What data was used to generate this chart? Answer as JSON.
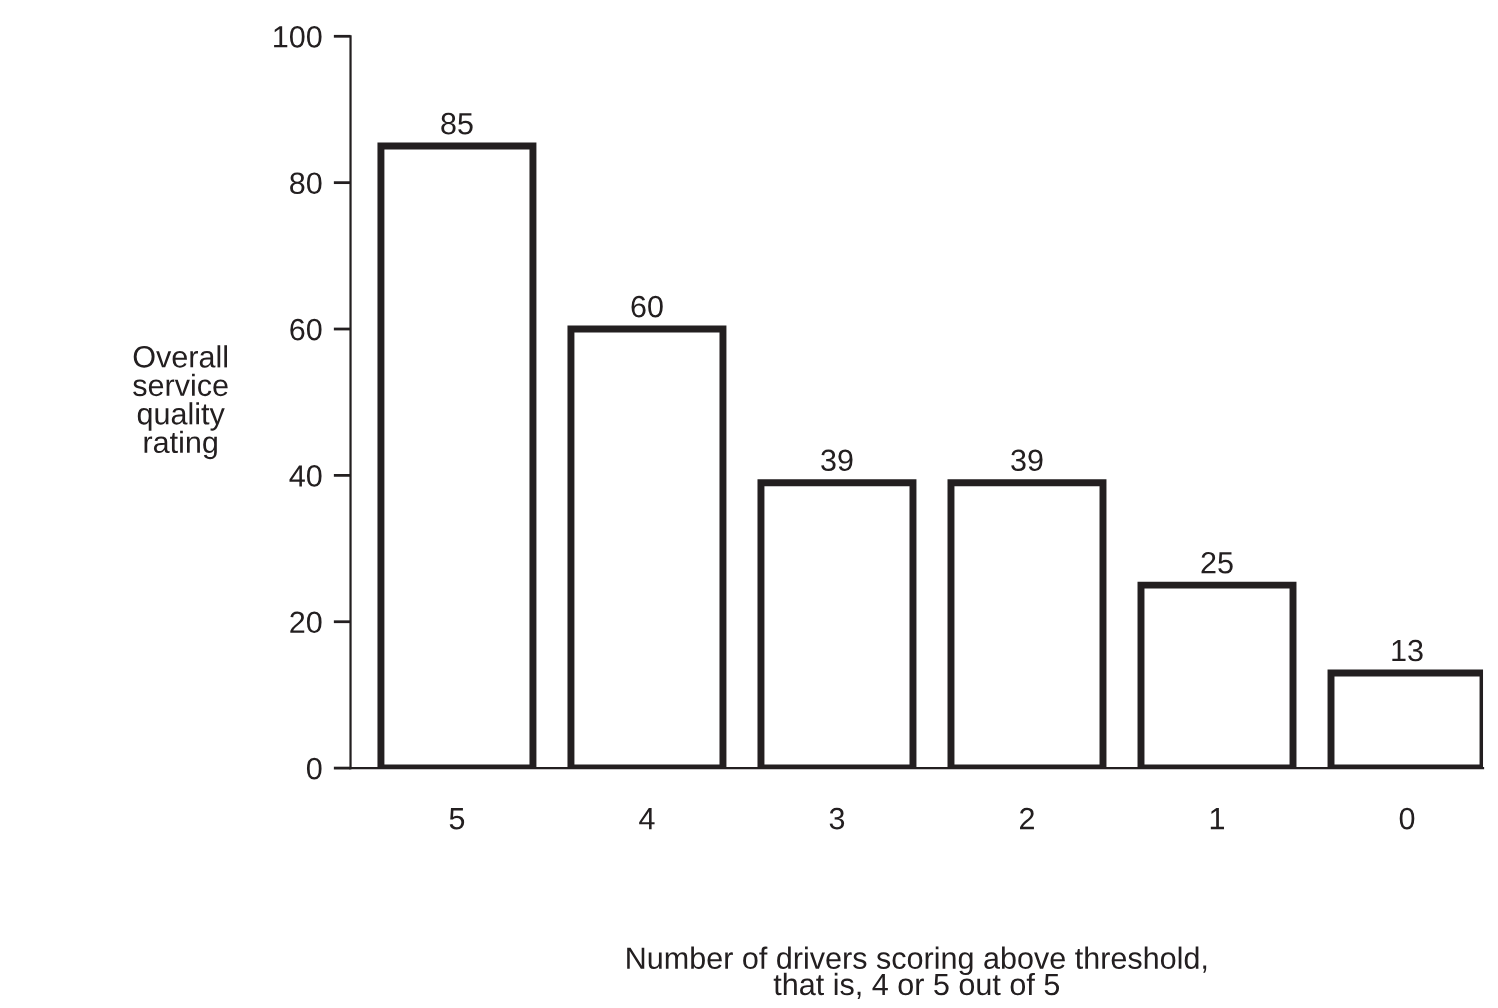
{
  "chart_data": {
    "type": "bar",
    "xlabel": "Number of drivers scoring above threshold,\nthat is, 4 or 5 out of 5",
    "ylabel": "Overall\nservice\nquality\nrating",
    "categories": [
      "5",
      "4",
      "3",
      "2",
      "1",
      "0"
    ],
    "values": [
      85,
      60,
      39,
      39,
      25,
      13
    ],
    "color": "#ffffff",
    "ylim": [
      0,
      100
    ],
    "yticks": [
      0,
      20,
      40,
      60,
      80,
      100
    ],
    "grid": false,
    "data_labels": true
  }
}
